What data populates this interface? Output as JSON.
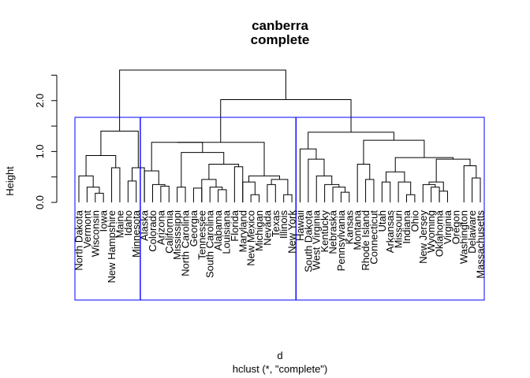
{
  "chart_data": {
    "type": "dendrogram",
    "title": "canberra",
    "subtitle": "complete",
    "xlabel": "d",
    "sub_xlabel": "hclust (*, \"complete\")",
    "ylabel": "Height",
    "yticks": [
      "0.0",
      "1.0",
      "2.0"
    ],
    "ylim": [
      0,
      2.6
    ],
    "box_color": "#0000ff",
    "leaves": [
      "North Dakota",
      "Vermont",
      "Wisconsin",
      "Iowa",
      "New Hampshire",
      "Maine",
      "Idaho",
      "Minnesota",
      "Alaska",
      "Colorado",
      "Arizona",
      "California",
      "Mississippi",
      "North Carolina",
      "Georgia",
      "Tennessee",
      "South Carolina",
      "Alabama",
      "Louisiana",
      "Florida",
      "Maryland",
      "New Mexico",
      "Michigan",
      "Nevada",
      "Texas",
      "Illinois",
      "New York",
      "Hawaii",
      "South Dakota",
      "West Virginia",
      "Kentucky",
      "Nebraska",
      "Pennsylvania",
      "Kansas",
      "Montana",
      "Rhode Island",
      "Connecticut",
      "Utah",
      "Arkansas",
      "Missouri",
      "Indiana",
      "Ohio",
      "New Jersey",
      "Wyoming",
      "Oklahoma",
      "Virginia",
      "Oregon",
      "Washington",
      "Delaware",
      "Massachusetts"
    ],
    "merges": [
      [
        3,
        4,
        0.18
      ],
      [
        2,
        3,
        0.3
      ],
      [
        1,
        2,
        0.52
      ],
      [
        5,
        6,
        0.68
      ],
      [
        1,
        5,
        0.92
      ],
      [
        7,
        8,
        0.42
      ],
      [
        7,
        9,
        0.68
      ],
      [
        1,
        7,
        1.4
      ],
      [
        11,
        12,
        0.32
      ],
      [
        10,
        11,
        0.35
      ],
      [
        9,
        10,
        0.62
      ],
      [
        13,
        14,
        0.3
      ],
      [
        15,
        16,
        0.28
      ],
      [
        18,
        19,
        0.25
      ],
      [
        17,
        18,
        0.3
      ],
      [
        16,
        17,
        0.45
      ],
      [
        20,
        21,
        0.7
      ],
      [
        16,
        20,
        0.75
      ],
      [
        13,
        16,
        0.98
      ],
      [
        9,
        13,
        1.18
      ],
      [
        22,
        23,
        0.15
      ],
      [
        21,
        22,
        0.4
      ],
      [
        24,
        25,
        0.35
      ],
      [
        26,
        27,
        0.15
      ],
      [
        24,
        26,
        0.45
      ],
      [
        21,
        24,
        0.52
      ],
      [
        9,
        21,
        1.18
      ],
      [
        33,
        34,
        0.2
      ],
      [
        32,
        33,
        0.3
      ],
      [
        31,
        32,
        0.35
      ],
      [
        30,
        31,
        0.52
      ],
      [
        29,
        30,
        0.85
      ],
      [
        28,
        29,
        1.05
      ],
      [
        36,
        37,
        0.45
      ],
      [
        35,
        36,
        0.75
      ],
      [
        38,
        39,
        0.4
      ],
      [
        41,
        42,
        0.15
      ],
      [
        40,
        41,
        0.4
      ],
      [
        38,
        40,
        0.6
      ],
      [
        44,
        45,
        0.3
      ],
      [
        43,
        44,
        0.35
      ],
      [
        45,
        46,
        0.22
      ],
      [
        43,
        45,
        0.4
      ],
      [
        49,
        50,
        0.48
      ],
      [
        48,
        49,
        0.72
      ],
      [
        43,
        48,
        0.85
      ],
      [
        38,
        43,
        0.88
      ],
      [
        35,
        38,
        1.22
      ],
      [
        28,
        35,
        1.38
      ],
      [
        9,
        28,
        2.02
      ],
      [
        1,
        9,
        2.6
      ]
    ],
    "clusters": [
      [
        1,
        8
      ],
      [
        9,
        27
      ],
      [
        28,
        50
      ]
    ]
  }
}
